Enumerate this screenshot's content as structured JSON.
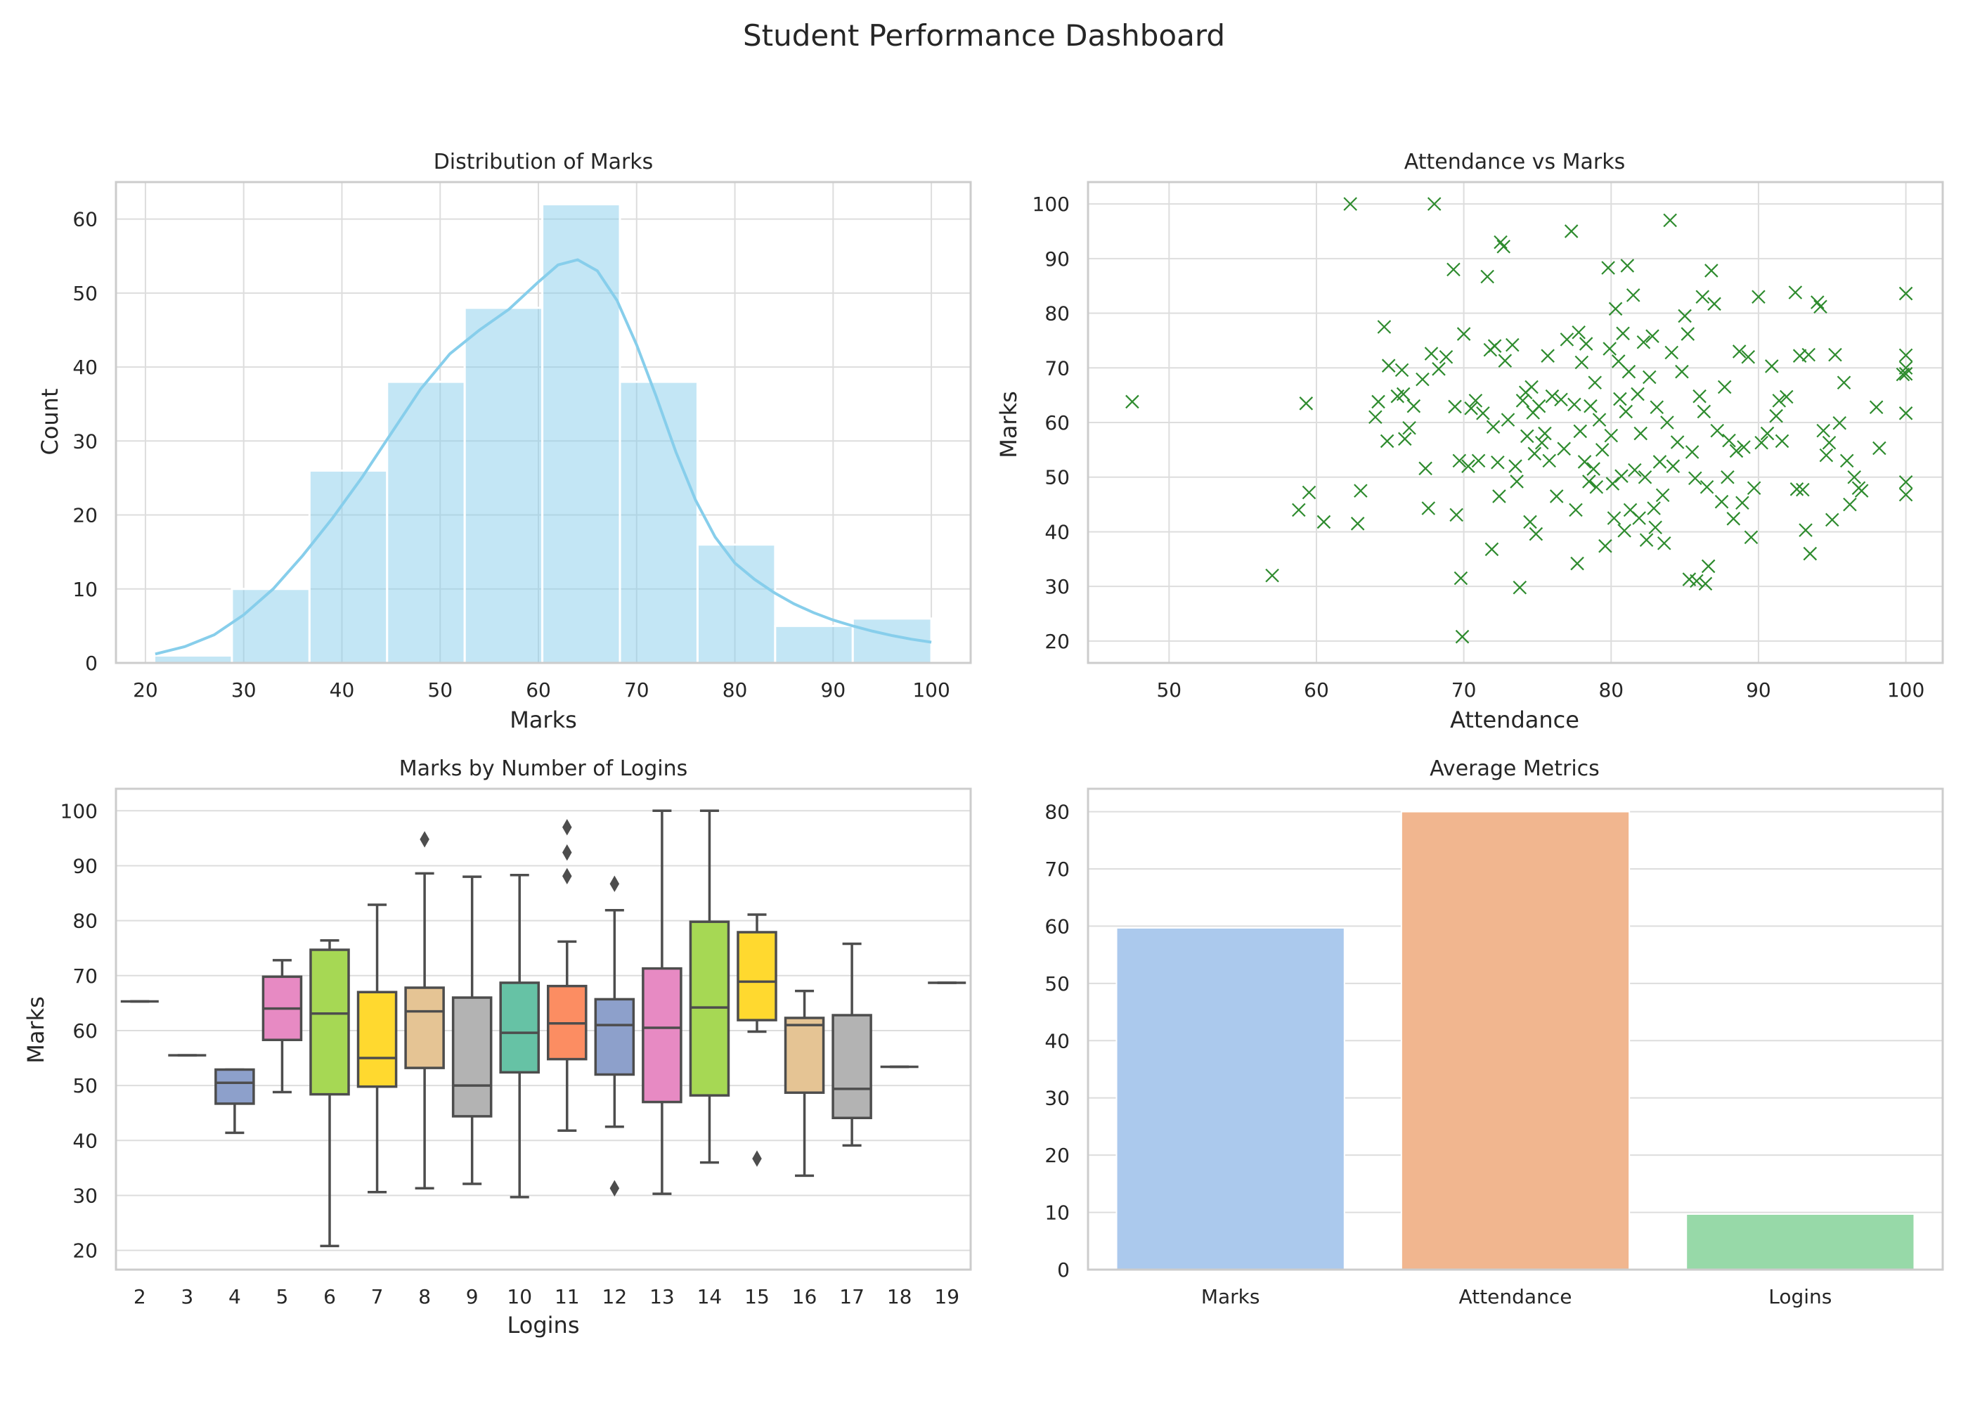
{
  "title": "Student Performance Dashboard",
  "colors": {
    "grid": "#dddddd",
    "frame": "#cccccc",
    "hist": "#87ceeb",
    "scatter": "#2e8b2e",
    "box_line": "#4d4d4d"
  },
  "chart_data": [
    {
      "type": "bar",
      "subtype": "histogram",
      "title": "Distribution of Marks",
      "xlabel": "Marks",
      "ylabel": "Count",
      "xlim": [
        17,
        104
      ],
      "ylim": [
        0,
        65
      ],
      "xticks": [
        20,
        30,
        40,
        50,
        60,
        70,
        80,
        90,
        100
      ],
      "yticks": [
        0,
        10,
        20,
        30,
        40,
        50,
        60
      ],
      "bins": [
        {
          "x0": 20.9,
          "x1": 28.8,
          "count": 1
        },
        {
          "x0": 28.8,
          "x1": 36.7,
          "count": 10
        },
        {
          "x0": 36.7,
          "x1": 44.6,
          "count": 26
        },
        {
          "x0": 44.6,
          "x1": 52.5,
          "count": 38
        },
        {
          "x0": 52.5,
          "x1": 60.4,
          "count": 48
        },
        {
          "x0": 60.4,
          "x1": 68.3,
          "count": 62
        },
        {
          "x0": 68.3,
          "x1": 76.2,
          "count": 38
        },
        {
          "x0": 76.2,
          "x1": 84.1,
          "count": 16
        },
        {
          "x0": 84.1,
          "x1": 92.0,
          "count": 5
        },
        {
          "x0": 92.0,
          "x1": 100.0,
          "count": 6
        }
      ],
      "kde": {
        "x": [
          21,
          24,
          27,
          30,
          33,
          36,
          39,
          42,
          45,
          48,
          51,
          54,
          57,
          60,
          62,
          64,
          66,
          68,
          70,
          72,
          74,
          76,
          78,
          80,
          82,
          84,
          86,
          88,
          90,
          92,
          94,
          96,
          98,
          100
        ],
        "y": [
          1.2,
          2.2,
          3.8,
          6.5,
          10.0,
          14.5,
          19.5,
          25.0,
          31.0,
          37.0,
          41.8,
          45.0,
          47.8,
          51.5,
          53.8,
          54.5,
          53.0,
          49.0,
          43.0,
          36.0,
          28.5,
          22.0,
          17.0,
          13.5,
          11.3,
          9.5,
          8.0,
          6.8,
          5.8,
          5.0,
          4.3,
          3.7,
          3.2,
          2.8
        ]
      },
      "grid": true
    },
    {
      "type": "scatter",
      "title": "Attendance vs Marks",
      "xlabel": "Attendance",
      "ylabel": "Marks",
      "xlim": [
        44.5,
        102.5
      ],
      "ylim": [
        16,
        104
      ],
      "xticks": [
        50,
        60,
        70,
        80,
        90,
        100
      ],
      "yticks": [
        20,
        30,
        40,
        50,
        60,
        70,
        80,
        90,
        100
      ],
      "marker": "x",
      "grid": true,
      "points": [
        [
          47.5,
          63.8
        ],
        [
          57.0,
          32.0
        ],
        [
          58.8,
          44.0
        ],
        [
          59.3,
          63.5
        ],
        [
          59.5,
          47.2
        ],
        [
          60.5,
          41.8
        ],
        [
          62.3,
          100.0
        ],
        [
          62.8,
          41.5
        ],
        [
          63.0,
          47.5
        ],
        [
          64.0,
          61.0
        ],
        [
          64.2,
          63.8
        ],
        [
          64.6,
          77.5
        ],
        [
          64.8,
          56.6
        ],
        [
          64.9,
          70.4
        ],
        [
          65.5,
          64.8
        ],
        [
          65.8,
          69.6
        ],
        [
          65.9,
          65.2
        ],
        [
          66.0,
          57.0
        ],
        [
          66.3,
          59.0
        ],
        [
          66.6,
          63.0
        ],
        [
          67.2,
          67.9
        ],
        [
          67.4,
          51.6
        ],
        [
          67.6,
          44.3
        ],
        [
          67.8,
          72.6
        ],
        [
          68.0,
          100.0
        ],
        [
          68.3,
          69.8
        ],
        [
          68.8,
          72.0
        ],
        [
          69.3,
          88.0
        ],
        [
          69.4,
          62.9
        ],
        [
          69.5,
          43.1
        ],
        [
          69.7,
          53.0
        ],
        [
          69.8,
          31.5
        ],
        [
          69.9,
          20.8
        ],
        [
          70.0,
          76.2
        ],
        [
          70.3,
          52.0
        ],
        [
          70.5,
          62.6
        ],
        [
          70.8,
          64.0
        ],
        [
          71.0,
          53.0
        ],
        [
          71.3,
          61.7
        ],
        [
          71.6,
          86.7
        ],
        [
          71.8,
          73.3
        ],
        [
          71.9,
          36.8
        ],
        [
          72.0,
          59.2
        ],
        [
          72.1,
          74.0
        ],
        [
          72.3,
          52.7
        ],
        [
          72.4,
          46.5
        ],
        [
          72.5,
          93.0
        ],
        [
          72.7,
          92.2
        ],
        [
          72.8,
          71.3
        ],
        [
          73.0,
          60.5
        ],
        [
          73.3,
          74.2
        ],
        [
          73.5,
          52.0
        ],
        [
          73.6,
          49.2
        ],
        [
          73.8,
          29.8
        ],
        [
          74.0,
          64.0
        ],
        [
          74.2,
          65.5
        ],
        [
          74.3,
          57.5
        ],
        [
          74.5,
          41.8
        ],
        [
          74.6,
          66.5
        ],
        [
          74.7,
          61.8
        ],
        [
          74.8,
          54.3
        ],
        [
          74.9,
          39.6
        ],
        [
          75.1,
          63.0
        ],
        [
          75.3,
          56.3
        ],
        [
          75.5,
          58.0
        ],
        [
          75.7,
          72.2
        ],
        [
          75.8,
          53.0
        ],
        [
          76.0,
          64.8
        ],
        [
          76.3,
          46.5
        ],
        [
          76.6,
          64.2
        ],
        [
          76.8,
          55.2
        ],
        [
          77.0,
          75.2
        ],
        [
          77.3,
          95.0
        ],
        [
          77.5,
          63.3
        ],
        [
          77.6,
          44.0
        ],
        [
          77.7,
          34.2
        ],
        [
          77.8,
          76.5
        ],
        [
          77.9,
          58.4
        ],
        [
          78.0,
          71.0
        ],
        [
          78.2,
          52.8
        ],
        [
          78.3,
          74.4
        ],
        [
          78.5,
          49.2
        ],
        [
          78.6,
          63.0
        ],
        [
          78.8,
          51.5
        ],
        [
          78.9,
          67.3
        ],
        [
          79.0,
          48.2
        ],
        [
          79.2,
          60.5
        ],
        [
          79.4,
          55.0
        ],
        [
          79.6,
          37.4
        ],
        [
          79.8,
          88.3
        ],
        [
          79.9,
          73.5
        ],
        [
          80.0,
          57.6
        ],
        [
          80.1,
          48.8
        ],
        [
          80.2,
          42.5
        ],
        [
          80.3,
          80.8
        ],
        [
          80.5,
          71.2
        ],
        [
          80.6,
          64.3
        ],
        [
          80.7,
          50.2
        ],
        [
          80.8,
          76.3
        ],
        [
          80.9,
          40.2
        ],
        [
          81.0,
          62.0
        ],
        [
          81.1,
          88.7
        ],
        [
          81.2,
          69.3
        ],
        [
          81.3,
          44.0
        ],
        [
          81.5,
          83.3
        ],
        [
          81.6,
          51.3
        ],
        [
          81.8,
          65.2
        ],
        [
          81.9,
          42.5
        ],
        [
          82.0,
          58.0
        ],
        [
          82.2,
          74.7
        ],
        [
          82.3,
          50.0
        ],
        [
          82.4,
          38.5
        ],
        [
          82.6,
          68.3
        ],
        [
          82.8,
          75.8
        ],
        [
          82.9,
          44.3
        ],
        [
          83.0,
          40.8
        ],
        [
          83.1,
          62.8
        ],
        [
          83.3,
          52.8
        ],
        [
          83.5,
          46.7
        ],
        [
          83.6,
          37.9
        ],
        [
          83.8,
          60.0
        ],
        [
          84.0,
          97.0
        ],
        [
          84.1,
          72.8
        ],
        [
          84.2,
          52.0
        ],
        [
          84.5,
          56.4
        ],
        [
          84.8,
          69.3
        ],
        [
          85.0,
          79.5
        ],
        [
          85.2,
          76.2
        ],
        [
          85.3,
          31.3
        ],
        [
          85.5,
          54.6
        ],
        [
          85.7,
          49.8
        ],
        [
          85.8,
          31.0
        ],
        [
          86.0,
          64.8
        ],
        [
          86.2,
          83.0
        ],
        [
          86.3,
          62.0
        ],
        [
          86.4,
          30.5
        ],
        [
          86.5,
          48.2
        ],
        [
          86.6,
          33.7
        ],
        [
          86.8,
          87.8
        ],
        [
          87.0,
          81.7
        ],
        [
          87.2,
          58.5
        ],
        [
          87.5,
          45.5
        ],
        [
          87.7,
          66.5
        ],
        [
          87.9,
          50.0
        ],
        [
          88.0,
          56.7
        ],
        [
          88.3,
          42.4
        ],
        [
          88.5,
          54.8
        ],
        [
          88.7,
          73.0
        ],
        [
          88.9,
          45.3
        ],
        [
          89.0,
          55.5
        ],
        [
          89.3,
          72.0
        ],
        [
          89.5,
          39.0
        ],
        [
          89.7,
          48.0
        ],
        [
          90.0,
          83.0
        ],
        [
          90.2,
          56.3
        ],
        [
          90.6,
          58.0
        ],
        [
          90.9,
          70.3
        ],
        [
          91.2,
          61.2
        ],
        [
          91.4,
          64.0
        ],
        [
          91.6,
          56.6
        ],
        [
          91.9,
          64.7
        ],
        [
          92.5,
          83.8
        ],
        [
          92.6,
          47.8
        ],
        [
          92.8,
          72.2
        ],
        [
          93.0,
          47.7
        ],
        [
          93.2,
          40.3
        ],
        [
          93.4,
          72.4
        ],
        [
          93.5,
          36.0
        ],
        [
          94.0,
          82.0
        ],
        [
          94.2,
          81.2
        ],
        [
          94.4,
          58.5
        ],
        [
          94.6,
          54.0
        ],
        [
          94.8,
          56.3
        ],
        [
          95.0,
          42.2
        ],
        [
          95.2,
          72.4
        ],
        [
          95.5,
          59.9
        ],
        [
          95.8,
          67.3
        ],
        [
          96.0,
          53.0
        ],
        [
          96.2,
          45.0
        ],
        [
          96.5,
          50.0
        ],
        [
          96.8,
          48.0
        ],
        [
          97.0,
          47.5
        ],
        [
          98.0,
          62.8
        ],
        [
          98.2,
          55.3
        ],
        [
          99.8,
          68.8
        ],
        [
          100.0,
          83.6
        ],
        [
          100.0,
          72.3
        ],
        [
          100.0,
          70.0
        ],
        [
          100.0,
          68.9
        ],
        [
          100.0,
          61.7
        ],
        [
          100.0,
          49.1
        ],
        [
          100.0,
          46.8
        ]
      ]
    },
    {
      "type": "box",
      "title": "Marks by Number of Logins",
      "xlabel": "Logins",
      "ylabel": "Marks",
      "ylim": [
        16.5,
        104
      ],
      "yticks": [
        20,
        30,
        40,
        50,
        60,
        70,
        80,
        90,
        100
      ],
      "categories": [
        "2",
        "3",
        "4",
        "5",
        "6",
        "7",
        "8",
        "9",
        "10",
        "11",
        "12",
        "13",
        "14",
        "15",
        "16",
        "17",
        "18",
        "19"
      ],
      "boxes": [
        {
          "min": 65.3,
          "q1": 65.3,
          "median": 65.3,
          "q3": 65.3,
          "max": 65.3,
          "outliers": [],
          "color": "#66c2a5"
        },
        {
          "min": 55.5,
          "q1": 55.5,
          "median": 55.5,
          "q3": 55.5,
          "max": 55.5,
          "outliers": [],
          "color": "#fc8d62"
        },
        {
          "min": 41.4,
          "q1": 46.7,
          "median": 50.5,
          "q3": 52.9,
          "max": 52.9,
          "outliers": [],
          "color": "#8da0cb"
        },
        {
          "min": 48.8,
          "q1": 58.3,
          "median": 64.0,
          "q3": 69.8,
          "max": 72.8,
          "outliers": [],
          "color": "#e78ac3"
        },
        {
          "min": 20.8,
          "q1": 48.4,
          "median": 63.1,
          "q3": 74.7,
          "max": 76.4,
          "outliers": [],
          "color": "#a6d854"
        },
        {
          "min": 30.6,
          "q1": 49.8,
          "median": 55.0,
          "q3": 67.0,
          "max": 82.9,
          "outliers": [],
          "color": "#ffd92f"
        },
        {
          "min": 31.3,
          "q1": 53.2,
          "median": 63.5,
          "q3": 67.8,
          "max": 88.6,
          "outliers": [
            94.8
          ],
          "color": "#e5c494"
        },
        {
          "min": 32.1,
          "q1": 44.4,
          "median": 50.0,
          "q3": 66.0,
          "max": 88.0,
          "outliers": [],
          "color": "#b3b3b3"
        },
        {
          "min": 29.7,
          "q1": 52.4,
          "median": 59.6,
          "q3": 68.7,
          "max": 88.3,
          "outliers": [],
          "color": "#66c2a5"
        },
        {
          "min": 41.8,
          "q1": 54.8,
          "median": 61.3,
          "q3": 68.1,
          "max": 76.2,
          "outliers": [
            97.0,
            92.4,
            88.1
          ],
          "color": "#fc8d62"
        },
        {
          "min": 42.5,
          "q1": 52.0,
          "median": 61.0,
          "q3": 65.7,
          "max": 81.9,
          "outliers": [
            86.7,
            31.3
          ],
          "color": "#8da0cb"
        },
        {
          "min": 30.3,
          "q1": 47.0,
          "median": 60.5,
          "q3": 71.3,
          "max": 100.0,
          "outliers": [],
          "color": "#e78ac3"
        },
        {
          "min": 36.0,
          "q1": 48.2,
          "median": 64.2,
          "q3": 79.8,
          "max": 100.0,
          "outliers": [],
          "color": "#a6d854"
        },
        {
          "min": 59.8,
          "q1": 61.9,
          "median": 68.9,
          "q3": 77.9,
          "max": 81.1,
          "outliers": [
            36.7
          ],
          "color": "#ffd92f"
        },
        {
          "min": 33.6,
          "q1": 48.7,
          "median": 61.0,
          "q3": 62.3,
          "max": 67.2,
          "outliers": [],
          "color": "#e5c494"
        },
        {
          "min": 39.1,
          "q1": 44.1,
          "median": 49.4,
          "q3": 62.8,
          "max": 75.8,
          "outliers": [],
          "color": "#b3b3b3"
        },
        {
          "min": 53.4,
          "q1": 53.4,
          "median": 53.4,
          "q3": 53.4,
          "max": 53.4,
          "outliers": [],
          "color": "#66c2a5"
        },
        {
          "min": 68.7,
          "q1": 68.7,
          "median": 68.7,
          "q3": 68.7,
          "max": 68.7,
          "outliers": [],
          "color": "#fc8d62"
        }
      ],
      "grid": true
    },
    {
      "type": "bar",
      "title": "Average Metrics",
      "xlabel": "",
      "ylabel": "",
      "ylim": [
        0,
        84
      ],
      "yticks": [
        0,
        10,
        20,
        30,
        40,
        50,
        60,
        70,
        80
      ],
      "categories": [
        "Marks",
        "Attendance",
        "Logins"
      ],
      "values": [
        59.7,
        80.0,
        9.7
      ],
      "bar_colors": [
        "#abc9ed",
        "#f1b68f",
        "#97d9a8"
      ],
      "grid": true
    }
  ]
}
